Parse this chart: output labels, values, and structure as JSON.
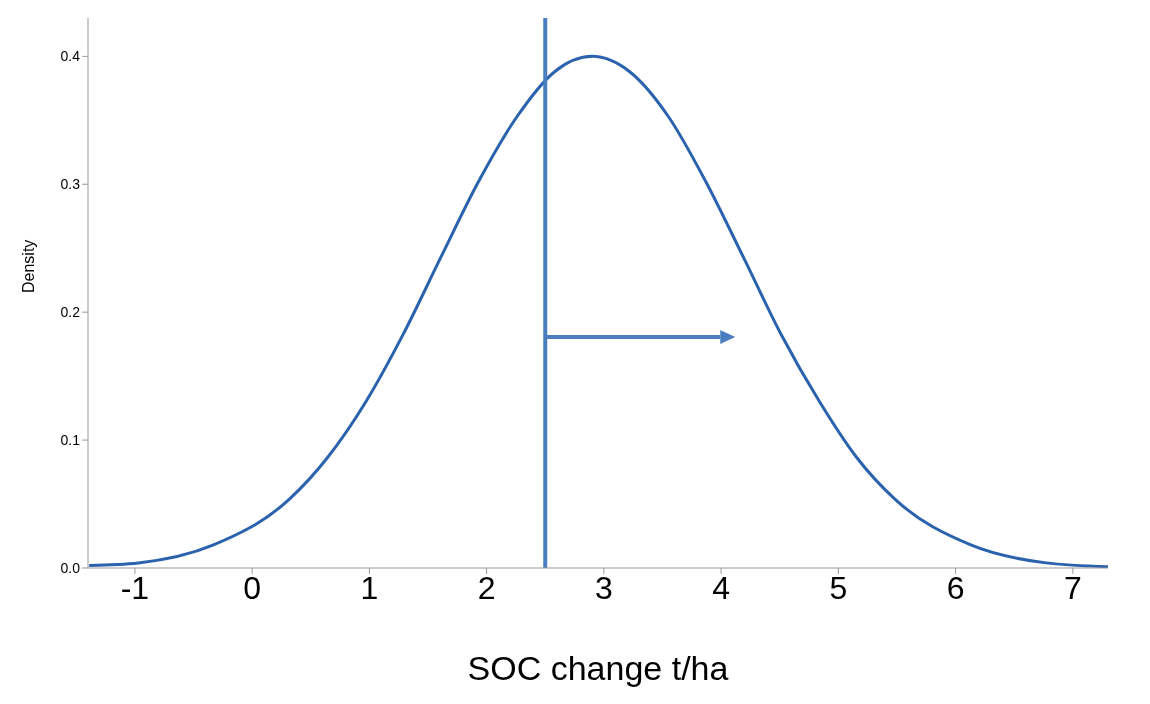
{
  "chart_data": {
    "type": "line",
    "xlabel": "SOC change t/ha",
    "ylabel": "Density",
    "x": [
      -1.39,
      -0.97,
      -0.33,
      0.32,
      0.64,
      0.97,
      1.29,
      1.61,
      1.93,
      2.26,
      2.58,
      2.9,
      3.22,
      3.55,
      3.87,
      4.19,
      4.51,
      4.84,
      5.16,
      5.48,
      6.13,
      6.77,
      7.3
    ],
    "values": [
      0.002,
      0.004,
      0.018,
      0.054,
      0.086,
      0.13,
      0.183,
      0.243,
      0.302,
      0.353,
      0.388,
      0.4,
      0.388,
      0.353,
      0.302,
      0.243,
      0.183,
      0.13,
      0.086,
      0.054,
      0.018,
      0.004,
      0.001
    ],
    "color": "#2a62ad",
    "xlim": [
      -1.4,
      7.3
    ],
    "xticks": [
      -1,
      0,
      1,
      2,
      3,
      4,
      5,
      6,
      7
    ],
    "ylim": [
      0,
      0.43
    ],
    "yticks": [
      {
        "value": 0,
        "label": "0.0"
      },
      {
        "value": 0.1,
        "label": "0.1"
      },
      {
        "value": 0.2,
        "label": "0.2"
      },
      {
        "value": 0.3,
        "label": "0.3"
      },
      0.4
    ],
    "ref_lines": [
      {
        "axis": "x",
        "value": 2.5,
        "color": "#4a7ec0"
      }
    ],
    "grid": false
  }
}
